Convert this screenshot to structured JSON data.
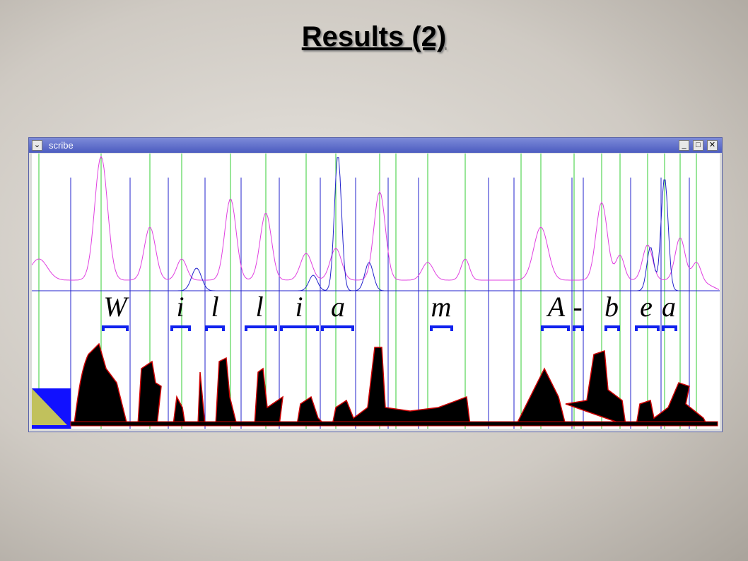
{
  "title": "Results (2)",
  "window": {
    "title": "scribe"
  },
  "letters": [
    "W",
    "i",
    "l",
    "l",
    "i",
    "a",
    "m",
    "A",
    "-",
    "b",
    "e",
    "a"
  ]
}
